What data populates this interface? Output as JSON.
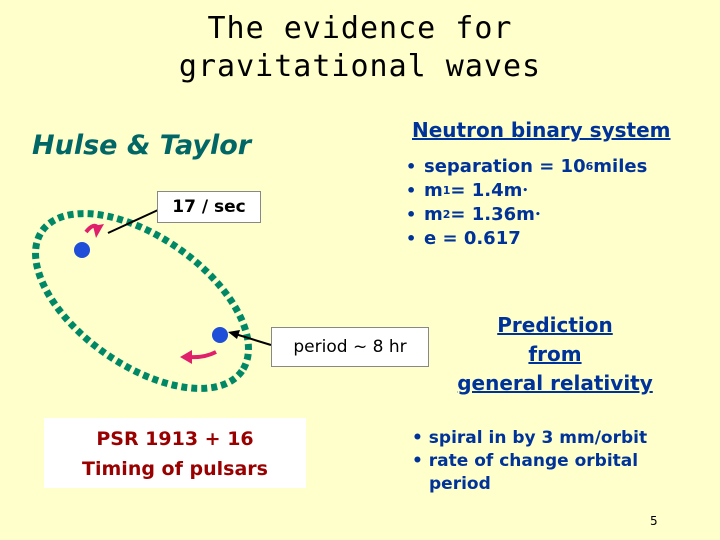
{
  "slide": {
    "title_line1": "The evidence for",
    "title_line2": "gravitational waves",
    "authors": "Hulse & Taylor",
    "pulse_rate": "17 / sec",
    "period": "period ~ 8 hr",
    "psr_line1": "PSR 1913 + 16",
    "psr_line2": "Timing of pulsars",
    "system_heading": "Neutron binary system",
    "separation_text": "separation = 10",
    "separation_exp": "6",
    "separation_unit": " miles",
    "m1_sym": "m",
    "m1_sub": "1",
    "m1_val": " = 1.4m",
    "m2_sym": "m",
    "m2_sub": "2",
    "m2_val": " = 1.36m",
    "ecc_text": "e   = 0.617",
    "prediction_line1": "Prediction",
    "prediction_line2": "from",
    "prediction_line3": "general relativity",
    "effect1": "spiral in by 3 mm/orbit",
    "effect2_line1": "rate of change orbital",
    "effect2_line2": "period",
    "page_number": "5"
  },
  "colors": {
    "background": "#ffffcc",
    "orbit": "#008866",
    "star": "#1f4fd8",
    "arrow": "#e0206a",
    "heading_blue": "#003399",
    "authors_teal": "#006666",
    "psr_red": "#990000"
  }
}
